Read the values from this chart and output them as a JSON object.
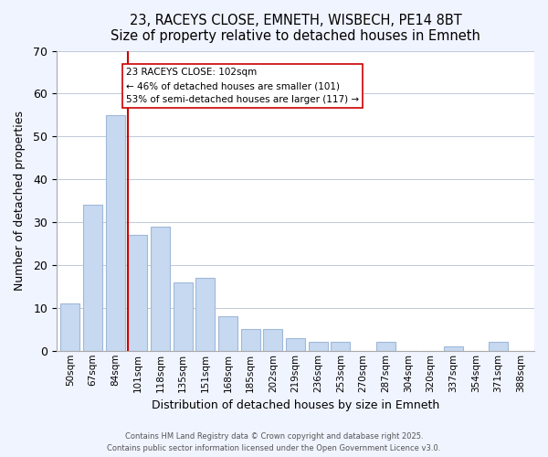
{
  "title": "23, RACEYS CLOSE, EMNETH, WISBECH, PE14 8BT",
  "subtitle": "Size of property relative to detached houses in Emneth",
  "xlabel": "Distribution of detached houses by size in Emneth",
  "ylabel": "Number of detached properties",
  "bar_labels": [
    "50sqm",
    "67sqm",
    "84sqm",
    "101sqm",
    "118sqm",
    "135sqm",
    "151sqm",
    "168sqm",
    "185sqm",
    "202sqm",
    "219sqm",
    "236sqm",
    "253sqm",
    "270sqm",
    "287sqm",
    "304sqm",
    "320sqm",
    "337sqm",
    "354sqm",
    "371sqm",
    "388sqm"
  ],
  "bar_values": [
    11,
    34,
    55,
    27,
    29,
    16,
    17,
    8,
    5,
    5,
    3,
    2,
    2,
    0,
    2,
    0,
    0,
    1,
    0,
    2,
    0
  ],
  "bar_color": "#c6d9f1",
  "bar_edge_color": "#a0b8d8",
  "marker_index": 3,
  "marker_color": "#cc0000",
  "ylim": [
    0,
    70
  ],
  "yticks": [
    0,
    10,
    20,
    30,
    40,
    50,
    60,
    70
  ],
  "annotation_lines": [
    "23 RACEYS CLOSE: 102sqm",
    "← 46% of detached houses are smaller (101)",
    "53% of semi-detached houses are larger (117) →"
  ],
  "footnote1": "Contains HM Land Registry data © Crown copyright and database right 2025.",
  "footnote2": "Contains public sector information licensed under the Open Government Licence v3.0.",
  "bg_color": "#f0f4ff",
  "plot_bg_color": "#ffffff",
  "grid_color": "#c0c8d8"
}
